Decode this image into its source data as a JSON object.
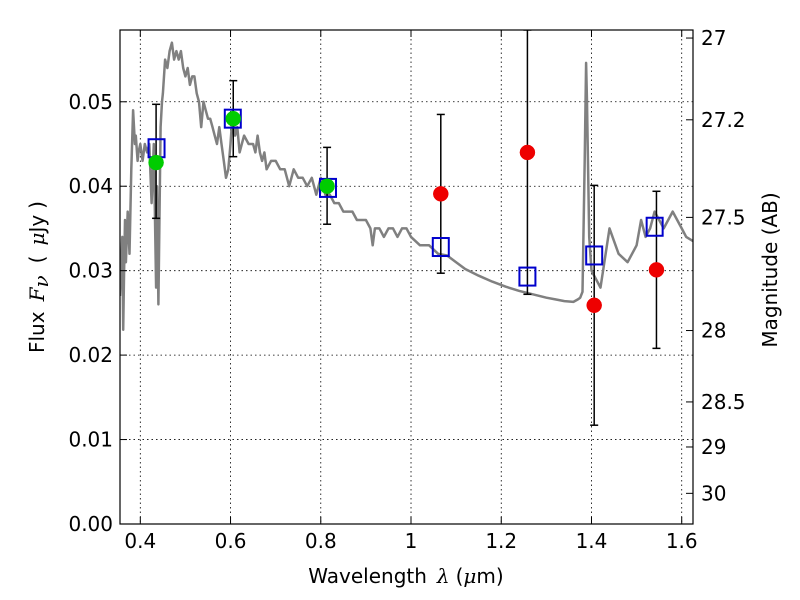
{
  "chart_data": {
    "type": "scatter",
    "xlabel": {
      "prefix": "Wavelength",
      "symbol": "λ",
      "unit_open": "(",
      "unit_mu": "μ",
      "unit_rest": "m)"
    },
    "ylabel": {
      "prefix": "Flux",
      "symbol": "F",
      "symbol_sub": "ν",
      "unit_open": "(",
      "unit_mu": "μ",
      "unit_rest": "Jy",
      "unit_close": ")"
    },
    "y2label": "Magnitude (AB)",
    "xlim": [
      0.355,
      1.625
    ],
    "ylim": [
      0.0,
      0.0585
    ],
    "grid": true,
    "x_ticks": [
      {
        "v": 0.4,
        "label": "0.4"
      },
      {
        "v": 0.6,
        "label": "0.6"
      },
      {
        "v": 0.8,
        "label": "0.8"
      },
      {
        "v": 1.0,
        "label": "1"
      },
      {
        "v": 1.2,
        "label": "1.2"
      },
      {
        "v": 1.4,
        "label": "1.4"
      },
      {
        "v": 1.6,
        "label": "1.6"
      }
    ],
    "y_ticks": [
      {
        "v": 0.0,
        "label": "0.00"
      },
      {
        "v": 0.01,
        "label": "0.01"
      },
      {
        "v": 0.02,
        "label": "0.02"
      },
      {
        "v": 0.03,
        "label": "0.03"
      },
      {
        "v": 0.04,
        "label": "0.04"
      },
      {
        "v": 0.05,
        "label": "0.05"
      }
    ],
    "y2_ticks": [
      {
        "mag": 27,
        "label": "27"
      },
      {
        "mag": 27.2,
        "label": "27.2"
      },
      {
        "mag": 27.5,
        "label": "27.5"
      },
      {
        "mag": 28,
        "label": "28"
      },
      {
        "mag": 28.5,
        "label": "28.5"
      },
      {
        "mag": 29,
        "label": "29"
      },
      {
        "mag": 30,
        "label": "30"
      }
    ],
    "model_spectrum": {
      "color": "#808080",
      "x": [
        0.355,
        0.36,
        0.362,
        0.364,
        0.366,
        0.368,
        0.372,
        0.376,
        0.38,
        0.384,
        0.386,
        0.388,
        0.39,
        0.394,
        0.396,
        0.4,
        0.405,
        0.41,
        0.415,
        0.42,
        0.425,
        0.43,
        0.435,
        0.437,
        0.44,
        0.445,
        0.448,
        0.45,
        0.455,
        0.46,
        0.465,
        0.47,
        0.475,
        0.48,
        0.485,
        0.49,
        0.495,
        0.5,
        0.505,
        0.51,
        0.515,
        0.52,
        0.525,
        0.53,
        0.535,
        0.54,
        0.545,
        0.55,
        0.555,
        0.56,
        0.565,
        0.57,
        0.575,
        0.58,
        0.585,
        0.59,
        0.595,
        0.6,
        0.605,
        0.61,
        0.615,
        0.62,
        0.625,
        0.63,
        0.64,
        0.65,
        0.655,
        0.66,
        0.665,
        0.67,
        0.675,
        0.68,
        0.69,
        0.7,
        0.71,
        0.72,
        0.73,
        0.74,
        0.75,
        0.76,
        0.77,
        0.78,
        0.79,
        0.8,
        0.81,
        0.82,
        0.83,
        0.84,
        0.85,
        0.86,
        0.87,
        0.88,
        0.89,
        0.9,
        0.91,
        0.915,
        0.92,
        0.93,
        0.94,
        0.95,
        0.96,
        0.97,
        0.98,
        0.99,
        1.0,
        1.02,
        1.04,
        1.06,
        1.08,
        1.1,
        1.12,
        1.15,
        1.18,
        1.21,
        1.24,
        1.27,
        1.3,
        1.32,
        1.34,
        1.36,
        1.37,
        1.375,
        1.38,
        1.385,
        1.388,
        1.39,
        1.395,
        1.4,
        1.42,
        1.44,
        1.46,
        1.48,
        1.5,
        1.51,
        1.52,
        1.53,
        1.54,
        1.55,
        1.56,
        1.57,
        1.58,
        1.59,
        1.6,
        1.61,
        1.625
      ],
      "y": [
        0.027,
        0.034,
        0.023,
        0.03,
        0.036,
        0.031,
        0.037,
        0.032,
        0.042,
        0.049,
        0.047,
        0.045,
        0.046,
        0.043,
        0.044,
        0.045,
        0.043,
        0.045,
        0.044,
        0.045,
        0.038,
        0.045,
        0.028,
        0.04,
        0.026,
        0.047,
        0.05,
        0.051,
        0.055,
        0.054,
        0.056,
        0.057,
        0.055,
        0.056,
        0.055,
        0.056,
        0.054,
        0.053,
        0.054,
        0.052,
        0.053,
        0.053,
        0.051,
        0.05,
        0.047,
        0.05,
        0.049,
        0.048,
        0.048,
        0.047,
        0.046,
        0.045,
        0.047,
        0.045,
        0.043,
        0.041,
        0.042,
        0.045,
        0.049,
        0.046,
        0.047,
        0.044,
        0.045,
        0.046,
        0.045,
        0.045,
        0.044,
        0.046,
        0.044,
        0.043,
        0.044,
        0.042,
        0.043,
        0.043,
        0.042,
        0.042,
        0.04,
        0.042,
        0.041,
        0.041,
        0.04,
        0.041,
        0.039,
        0.041,
        0.039,
        0.039,
        0.038,
        0.038,
        0.037,
        0.037,
        0.037,
        0.036,
        0.036,
        0.036,
        0.035,
        0.033,
        0.035,
        0.035,
        0.034,
        0.035,
        0.035,
        0.034,
        0.035,
        0.035,
        0.034,
        0.033,
        0.033,
        0.032,
        0.0318,
        0.031,
        0.0302,
        0.0294,
        0.0287,
        0.0281,
        0.0276,
        0.0272,
        0.0268,
        0.0266,
        0.0264,
        0.0263,
        0.0266,
        0.0268,
        0.0275,
        0.043,
        0.0546,
        0.05,
        0.034,
        0.03,
        0.028,
        0.035,
        0.032,
        0.031,
        0.033,
        0.036,
        0.034,
        0.035,
        0.037,
        0.036,
        0.035,
        0.036,
        0.037,
        0.036,
        0.035,
        0.034,
        0.0335
      ]
    },
    "series": [
      {
        "name": "",
        "style": "open-square",
        "color": "#0000cc",
        "x": [
          0.436,
          0.605,
          0.816,
          1.066,
          1.258,
          1.406,
          1.54
        ],
        "y": [
          0.0445,
          0.048,
          0.0398,
          0.0328,
          0.0293,
          0.0318,
          0.0352
        ]
      },
      {
        "name": "",
        "style": "filled-circle",
        "color": "#00cc00",
        "x": [
          0.435,
          0.606,
          0.814
        ],
        "y": [
          0.0428,
          0.048,
          0.04
        ],
        "yerr_low": [
          0.0362,
          0.0435,
          0.0355
        ],
        "yerr_high": [
          0.0497,
          0.0525,
          0.0446
        ]
      },
      {
        "name": "",
        "style": "filled-circle",
        "color": "#ee0000",
        "x": [
          1.066,
          1.258,
          1.406,
          1.544
        ],
        "y": [
          0.0391,
          0.044,
          0.0259,
          0.0301
        ],
        "yerr_low": [
          0.0297,
          0.0272,
          0.0117,
          0.0208
        ],
        "yerr_high": [
          0.0485,
          0.0585,
          0.0401,
          0.0394
        ]
      }
    ]
  }
}
